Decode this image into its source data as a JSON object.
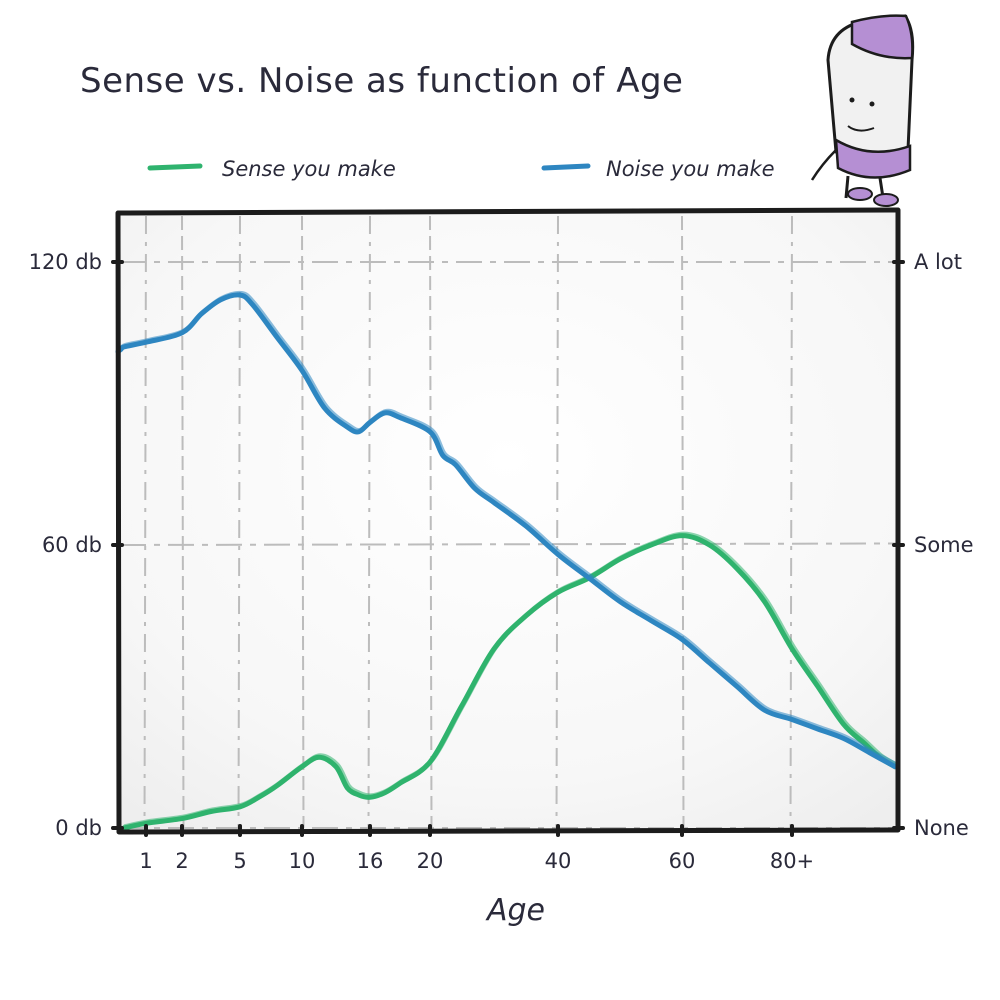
{
  "chart_data": {
    "type": "line",
    "title": "Sense vs. Noise as function of Age",
    "xlabel": "Age",
    "ylabel_left_ticks": [
      "0 db",
      "60 db",
      "120 db"
    ],
    "ylabel_right_ticks": [
      "None",
      "Some",
      "A lot"
    ],
    "x_ticks": [
      "1",
      "2",
      "5",
      "10",
      "16",
      "20",
      "40",
      "60",
      "80+"
    ],
    "ylim": [
      0,
      120
    ],
    "grid": true,
    "legend_position": "top",
    "series": [
      {
        "name": "Sense you make",
        "color": "#2fb36e",
        "points": [
          [
            0,
            0
          ],
          [
            1,
            1
          ],
          [
            2,
            2
          ],
          [
            3.5,
            3.5
          ],
          [
            5,
            4.5
          ],
          [
            6.5,
            6.5
          ],
          [
            8,
            9
          ],
          [
            10,
            13
          ],
          [
            11.5,
            15
          ],
          [
            13,
            13
          ],
          [
            14,
            8.5
          ],
          [
            15,
            7
          ],
          [
            16,
            6.5
          ],
          [
            17,
            7.5
          ],
          [
            18,
            9.5
          ],
          [
            20,
            14
          ],
          [
            25,
            26
          ],
          [
            30,
            38
          ],
          [
            35,
            45
          ],
          [
            40,
            50
          ],
          [
            45,
            53
          ],
          [
            50,
            57
          ],
          [
            55,
            60
          ],
          [
            60,
            62
          ],
          [
            65,
            60
          ],
          [
            70,
            55
          ],
          [
            75,
            48
          ],
          [
            80,
            38
          ],
          [
            85,
            30
          ],
          [
            90,
            22
          ],
          [
            94,
            18
          ],
          [
            97,
            15
          ],
          [
            100,
            13
          ]
        ]
      },
      {
        "name": "Noise you make",
        "color": "#2e86c1",
        "points": [
          [
            -4,
            101
          ],
          [
            -2,
            101.5
          ],
          [
            0,
            102
          ],
          [
            1,
            103
          ],
          [
            2,
            105
          ],
          [
            3,
            109
          ],
          [
            4,
            112
          ],
          [
            5,
            113
          ],
          [
            6,
            111
          ],
          [
            8,
            104
          ],
          [
            10,
            97
          ],
          [
            12,
            89
          ],
          [
            14,
            85
          ],
          [
            15,
            84
          ],
          [
            16,
            86
          ],
          [
            17,
            88
          ],
          [
            18,
            87
          ],
          [
            20,
            84
          ],
          [
            22,
            79
          ],
          [
            24,
            77
          ],
          [
            27,
            72
          ],
          [
            30,
            69
          ],
          [
            35,
            64
          ],
          [
            40,
            58
          ],
          [
            45,
            53
          ],
          [
            50,
            48
          ],
          [
            55,
            44
          ],
          [
            60,
            40
          ],
          [
            65,
            35
          ],
          [
            70,
            30
          ],
          [
            75,
            25
          ],
          [
            80,
            23
          ],
          [
            85,
            21
          ],
          [
            90,
            19
          ],
          [
            95,
            16
          ],
          [
            100,
            13
          ]
        ]
      }
    ],
    "annotation": "Character illustration in top-right corner"
  }
}
